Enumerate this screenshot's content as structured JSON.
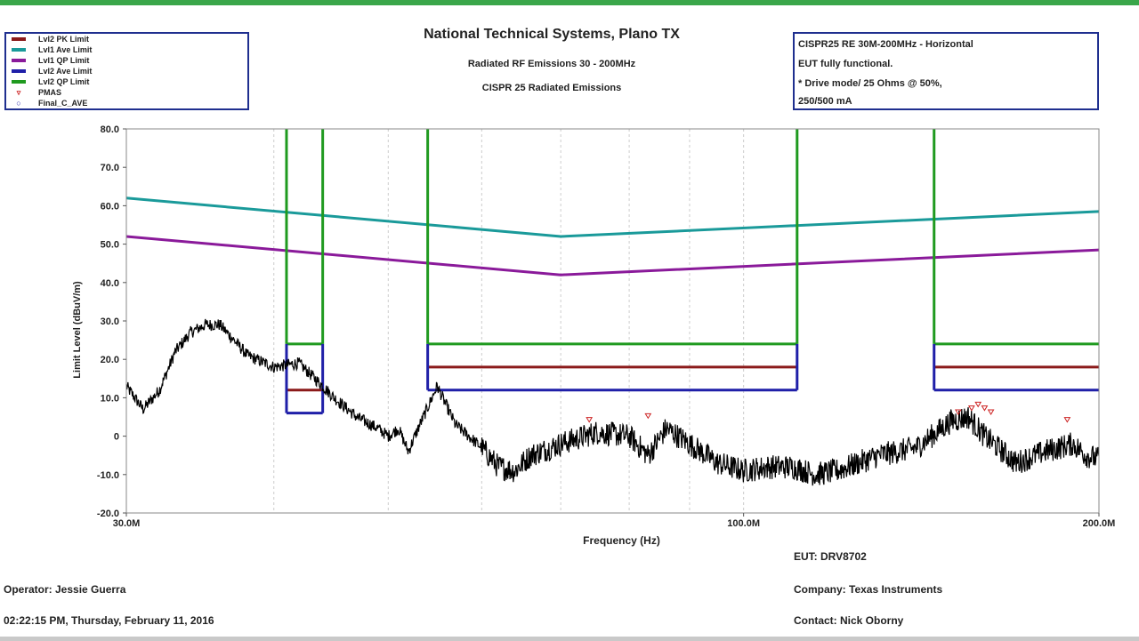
{
  "window": {
    "accent_top": "#3aa64a"
  },
  "legend": {
    "items": [
      {
        "label": "Lvl2 PK Limit",
        "color": "#8b1a1a",
        "type": "line"
      },
      {
        "label": "Lvl1 Ave Limit",
        "color": "#1a9a9a",
        "type": "line"
      },
      {
        "label": "Lvl1 QP Limit",
        "color": "#8a1a9a",
        "type": "line"
      },
      {
        "label": "Lvl2 Ave Limit",
        "color": "#1f1fa8",
        "type": "line"
      },
      {
        "label": "Lvl2 QP Limit",
        "color": "#1f9a1f",
        "type": "line"
      },
      {
        "label": "PMAS",
        "color": "#cc2222",
        "type": "marker",
        "glyph": "▿"
      },
      {
        "label": "Final_C_AVE",
        "color": "#1f1fa8",
        "type": "marker",
        "glyph": "○"
      }
    ]
  },
  "header": {
    "title": "National Technical Systems, Plano TX",
    "subtitle": "Radiated RF Emissions 30 - 200MHz",
    "subtitle2": "CISPR 25 Radiated Emissions"
  },
  "info": {
    "line1": "CISPR25 RE 30M-200MHz - Horizontal",
    "line2": "EUT fully functional.",
    "line3": "* Drive mode/ 25  Ohms @ 50%,",
    "line4": "250/500 mA"
  },
  "footer": {
    "eut": "EUT: DRV8702",
    "operator": "Operator: Jessie Guerra",
    "company": "Company: Texas Instruments",
    "datetime": "02:22:15 PM, Thursday, February 11, 2016",
    "contact": "Contact: Nick Oborny"
  },
  "chart_data": {
    "type": "line",
    "xlabel": "Frequency (Hz)",
    "ylabel": "Limit Level (dBuV/m)",
    "xscale": "log",
    "xlim": [
      30,
      200
    ],
    "ylim": [
      -20,
      80
    ],
    "xticks": [
      {
        "value": 30,
        "label": "30.0M"
      },
      {
        "value": 100,
        "label": "100.0M"
      },
      {
        "value": 200,
        "label": "200.0M"
      }
    ],
    "yticks": [
      {
        "value": 80,
        "label": "80.0"
      },
      {
        "value": 70,
        "label": "70.0"
      },
      {
        "value": 60,
        "label": "60.0"
      },
      {
        "value": 50,
        "label": "50.0"
      },
      {
        "value": 40,
        "label": "40.0"
      },
      {
        "value": 30,
        "label": "30.0"
      },
      {
        "value": 20,
        "label": "20.0"
      },
      {
        "value": 10,
        "label": "10.0"
      },
      {
        "value": 0,
        "label": "0"
      },
      {
        "value": -10,
        "label": "-10.0"
      },
      {
        "value": -20,
        "label": "-20.0"
      }
    ],
    "grid": "dashed-vertical",
    "series": [
      {
        "name": "Lvl1 Ave Limit",
        "color": "#1a9a9a",
        "points": [
          [
            30,
            62
          ],
          [
            70,
            52
          ],
          [
            200,
            58.5
          ]
        ]
      },
      {
        "name": "Lvl1 QP Limit",
        "color": "#8a1a9a",
        "points": [
          [
            30,
            52
          ],
          [
            70,
            42
          ],
          [
            200,
            48.5
          ]
        ]
      },
      {
        "name": "Lvl2 QP Limit",
        "color": "#1f9a1f",
        "segments": [
          {
            "x": [
              41,
              44
            ],
            "level": 24
          },
          {
            "x": [
              54,
              111
            ],
            "level": 24
          },
          {
            "x": [
              145,
              200
            ],
            "level": 24
          }
        ]
      },
      {
        "name": "Lvl2 PK Limit",
        "color": "#8b1a1a",
        "segments": [
          {
            "x": [
              41,
              44
            ],
            "level": 12
          },
          {
            "x": [
              54,
              111
            ],
            "level": 18
          },
          {
            "x": [
              145,
              200
            ],
            "level": 18
          }
        ]
      },
      {
        "name": "Lvl2 Ave Limit",
        "color": "#1f1fa8",
        "segments": [
          {
            "x": [
              41,
              44
            ],
            "level": 6
          },
          {
            "x": [
              54,
              111
            ],
            "level": 12
          },
          {
            "x": [
              145,
              200
            ],
            "level": 12
          }
        ]
      },
      {
        "name": "Measured",
        "color": "#000000",
        "points": [
          [
            30,
            13
          ],
          [
            31,
            7
          ],
          [
            32,
            12
          ],
          [
            33,
            22
          ],
          [
            34,
            27
          ],
          [
            35,
            29
          ],
          [
            36,
            29
          ],
          [
            37,
            25
          ],
          [
            38,
            21
          ],
          [
            40,
            18
          ],
          [
            42,
            19
          ],
          [
            43,
            16
          ],
          [
            45,
            10
          ],
          [
            47,
            5
          ],
          [
            49,
            2
          ],
          [
            50,
            0
          ],
          [
            51,
            2
          ],
          [
            52,
            -4
          ],
          [
            53,
            2
          ],
          [
            55,
            13
          ],
          [
            57,
            3
          ],
          [
            60,
            -3
          ],
          [
            62,
            -8
          ],
          [
            64,
            -9
          ],
          [
            66,
            -5
          ],
          [
            70,
            -2
          ],
          [
            75,
            1
          ],
          [
            80,
            0
          ],
          [
            83,
            -5
          ],
          [
            86,
            2
          ],
          [
            90,
            -2
          ],
          [
            95,
            -7
          ],
          [
            100,
            -9
          ],
          [
            105,
            -8
          ],
          [
            110,
            -8
          ],
          [
            115,
            -10
          ],
          [
            120,
            -9
          ],
          [
            125,
            -7
          ],
          [
            130,
            -5
          ],
          [
            140,
            -3
          ],
          [
            150,
            4
          ],
          [
            155,
            5
          ],
          [
            160,
            0
          ],
          [
            170,
            -7
          ],
          [
            180,
            -4
          ],
          [
            190,
            -2
          ],
          [
            195,
            -5
          ],
          [
            200,
            -6
          ]
        ]
      }
    ],
    "markers": {
      "name": "PMAS",
      "color": "#cc2222",
      "points": [
        [
          74,
          3
        ],
        [
          83,
          4
        ],
        [
          152,
          5
        ],
        [
          156,
          6
        ],
        [
          158,
          7
        ],
        [
          160,
          6
        ],
        [
          162,
          5
        ],
        [
          188,
          3
        ]
      ]
    }
  }
}
